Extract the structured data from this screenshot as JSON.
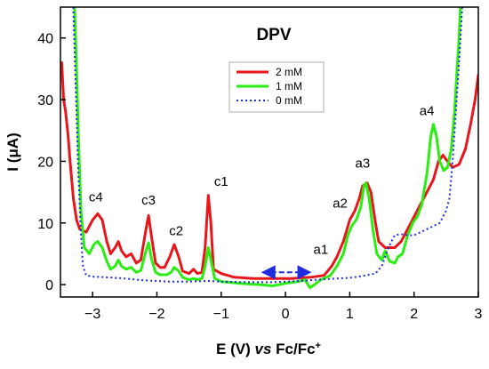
{
  "chart_data": {
    "type": "line",
    "title": "DPV",
    "xlabel_main": "E (V) ",
    "xlabel_italic": "vs",
    "xlabel_rest": " Fc/Fc",
    "xlabel_sup": "+",
    "ylabel": "I (μA)",
    "xlim": [
      -3.5,
      3.0
    ],
    "ylim": [
      -2,
      45
    ],
    "xticks": [
      -3,
      -2,
      -1,
      0,
      1,
      2,
      3
    ],
    "yticks": [
      0,
      10,
      20,
      30,
      40
    ],
    "legend_position": "top-center",
    "series": [
      {
        "name": "2 mM",
        "color": "#e8161b",
        "style": "solid",
        "points": [
          [
            -3.48,
            36
          ],
          [
            -3.45,
            30
          ],
          [
            -3.42,
            28
          ],
          [
            -3.38,
            24
          ],
          [
            -3.35,
            20
          ],
          [
            -3.3,
            14
          ],
          [
            -3.25,
            10.5
          ],
          [
            -3.2,
            9
          ],
          [
            -3.1,
            8.5
          ],
          [
            -3.0,
            10.5
          ],
          [
            -2.92,
            11.5
          ],
          [
            -2.85,
            10.5
          ],
          [
            -2.78,
            7
          ],
          [
            -2.72,
            5
          ],
          [
            -2.65,
            6
          ],
          [
            -2.6,
            7
          ],
          [
            -2.55,
            5.5
          ],
          [
            -2.48,
            4.5
          ],
          [
            -2.4,
            5
          ],
          [
            -2.32,
            3.5
          ],
          [
            -2.25,
            4
          ],
          [
            -2.17,
            9
          ],
          [
            -2.13,
            11.2
          ],
          [
            -2.08,
            7.5
          ],
          [
            -2.02,
            3.5
          ],
          [
            -1.95,
            2.8
          ],
          [
            -1.88,
            2.8
          ],
          [
            -1.8,
            4.5
          ],
          [
            -1.73,
            6.5
          ],
          [
            -1.66,
            4.5
          ],
          [
            -1.6,
            2.2
          ],
          [
            -1.5,
            1.8
          ],
          [
            -1.43,
            2.5
          ],
          [
            -1.37,
            1.8
          ],
          [
            -1.3,
            2
          ],
          [
            -1.25,
            6
          ],
          [
            -1.2,
            14.5
          ],
          [
            -1.16,
            10
          ],
          [
            -1.12,
            2.5
          ],
          [
            -1.0,
            1.8
          ],
          [
            -0.8,
            1.2
          ],
          [
            -0.5,
            1
          ],
          [
            -0.2,
            1
          ],
          [
            0.1,
            1
          ],
          [
            0.4,
            1.2
          ],
          [
            0.6,
            1.5
          ],
          [
            0.72,
            3
          ],
          [
            0.8,
            4.5
          ],
          [
            0.9,
            7
          ],
          [
            1.0,
            10.5
          ],
          [
            1.08,
            12
          ],
          [
            1.15,
            14
          ],
          [
            1.2,
            16
          ],
          [
            1.27,
            16.5
          ],
          [
            1.33,
            15
          ],
          [
            1.4,
            10
          ],
          [
            1.45,
            7
          ],
          [
            1.55,
            6
          ],
          [
            1.7,
            6
          ],
          [
            1.8,
            7
          ],
          [
            1.9,
            9
          ],
          [
            2.0,
            11
          ],
          [
            2.15,
            14
          ],
          [
            2.3,
            17
          ],
          [
            2.38,
            20
          ],
          [
            2.45,
            21
          ],
          [
            2.52,
            20
          ],
          [
            2.6,
            19
          ],
          [
            2.7,
            19.5
          ],
          [
            2.8,
            22
          ],
          [
            2.88,
            26
          ],
          [
            2.95,
            30
          ],
          [
            3.0,
            34
          ]
        ]
      },
      {
        "name": "1 mM",
        "color": "#2aee11",
        "style": "solid",
        "points": [
          [
            -3.28,
            45
          ],
          [
            -3.25,
            35
          ],
          [
            -3.22,
            24
          ],
          [
            -3.18,
            12
          ],
          [
            -3.13,
            6
          ],
          [
            -3.05,
            5
          ],
          [
            -2.98,
            6.5
          ],
          [
            -2.92,
            7
          ],
          [
            -2.85,
            6
          ],
          [
            -2.78,
            3.8
          ],
          [
            -2.72,
            2.5
          ],
          [
            -2.65,
            3
          ],
          [
            -2.6,
            4
          ],
          [
            -2.55,
            3
          ],
          [
            -2.48,
            2.5
          ],
          [
            -2.4,
            2.8
          ],
          [
            -2.32,
            2
          ],
          [
            -2.25,
            2.3
          ],
          [
            -2.17,
            5.5
          ],
          [
            -2.13,
            6.8
          ],
          [
            -2.08,
            4
          ],
          [
            -2.02,
            2
          ],
          [
            -1.95,
            1.6
          ],
          [
            -1.85,
            1.6
          ],
          [
            -1.78,
            2
          ],
          [
            -1.73,
            2.8
          ],
          [
            -1.66,
            2.2
          ],
          [
            -1.6,
            1.2
          ],
          [
            -1.5,
            0.8
          ],
          [
            -1.43,
            1
          ],
          [
            -1.37,
            0.8
          ],
          [
            -1.3,
            1
          ],
          [
            -1.25,
            3
          ],
          [
            -1.2,
            6
          ],
          [
            -1.16,
            4
          ],
          [
            -1.1,
            1
          ],
          [
            -1.0,
            0.5
          ],
          [
            -0.7,
            0.2
          ],
          [
            -0.4,
            0
          ],
          [
            -0.2,
            -0.2
          ],
          [
            0,
            0.2
          ],
          [
            0.2,
            0.5
          ],
          [
            0.3,
            0.8
          ],
          [
            0.38,
            -0.5
          ],
          [
            0.45,
            0
          ],
          [
            0.55,
            0.8
          ],
          [
            0.7,
            1.5
          ],
          [
            0.8,
            3
          ],
          [
            0.9,
            5
          ],
          [
            0.97,
            8
          ],
          [
            1.03,
            9.5
          ],
          [
            1.1,
            10.5
          ],
          [
            1.17,
            12.5
          ],
          [
            1.22,
            16
          ],
          [
            1.25,
            16.5
          ],
          [
            1.3,
            14
          ],
          [
            1.36,
            9
          ],
          [
            1.42,
            5
          ],
          [
            1.5,
            4
          ],
          [
            1.55,
            5.5
          ],
          [
            1.62,
            3.8
          ],
          [
            1.7,
            3.5
          ],
          [
            1.75,
            4.5
          ],
          [
            1.82,
            5
          ],
          [
            1.9,
            8
          ],
          [
            1.98,
            10
          ],
          [
            2.05,
            11
          ],
          [
            2.12,
            13
          ],
          [
            2.2,
            18
          ],
          [
            2.26,
            24
          ],
          [
            2.3,
            26
          ],
          [
            2.35,
            24
          ],
          [
            2.4,
            20
          ],
          [
            2.46,
            18.5
          ],
          [
            2.52,
            19
          ],
          [
            2.58,
            22
          ],
          [
            2.63,
            28
          ],
          [
            2.67,
            35
          ],
          [
            2.7,
            40
          ],
          [
            2.72,
            45
          ]
        ]
      },
      {
        "name": "0 mM",
        "color": "#1f2de0",
        "style": "dotted",
        "points": [
          [
            -3.3,
            45
          ],
          [
            -3.28,
            38
          ],
          [
            -3.25,
            28
          ],
          [
            -3.22,
            18
          ],
          [
            -3.18,
            8
          ],
          [
            -3.15,
            3
          ],
          [
            -3.1,
            1.5
          ],
          [
            -3.0,
            1.3
          ],
          [
            -2.8,
            1.2
          ],
          [
            -2.5,
            1
          ],
          [
            -2.2,
            0.7
          ],
          [
            -2.0,
            0.6
          ],
          [
            -1.8,
            0.5
          ],
          [
            -1.5,
            0.5
          ],
          [
            -1.2,
            0.6
          ],
          [
            -1.0,
            0.5
          ],
          [
            -0.6,
            0.4
          ],
          [
            -0.2,
            0.4
          ],
          [
            0.2,
            0.6
          ],
          [
            0.5,
            0.8
          ],
          [
            0.8,
            1
          ],
          [
            1.0,
            1.1
          ],
          [
            1.2,
            1.4
          ],
          [
            1.4,
            1.8
          ],
          [
            1.5,
            3
          ],
          [
            1.6,
            6
          ],
          [
            1.7,
            8
          ],
          [
            1.8,
            8.2
          ],
          [
            1.9,
            8
          ],
          [
            2.0,
            8
          ],
          [
            2.1,
            8.5
          ],
          [
            2.2,
            9
          ],
          [
            2.3,
            9.5
          ],
          [
            2.4,
            10
          ],
          [
            2.5,
            12
          ],
          [
            2.55,
            14
          ],
          [
            2.6,
            20
          ],
          [
            2.65,
            28
          ],
          [
            2.7,
            36
          ],
          [
            2.75,
            45
          ]
        ]
      }
    ],
    "annotations": [
      {
        "text": "c4",
        "x": -2.95,
        "y": 13.5
      },
      {
        "text": "c3",
        "x": -2.13,
        "y": 13.0
      },
      {
        "text": "c2",
        "x": -1.7,
        "y": 8.0
      },
      {
        "text": "c1",
        "x": -1.0,
        "y": 16.0
      },
      {
        "text": "a1",
        "x": 0.55,
        "y": 5.0
      },
      {
        "text": "a2",
        "x": 0.85,
        "y": 12.5
      },
      {
        "text": "a3",
        "x": 1.2,
        "y": 19.0
      },
      {
        "text": "a4",
        "x": 2.2,
        "y": 27.5
      }
    ],
    "arrow": {
      "from": -0.35,
      "to": 0.38,
      "y": 2.0,
      "color": "#1f2de0"
    }
  }
}
